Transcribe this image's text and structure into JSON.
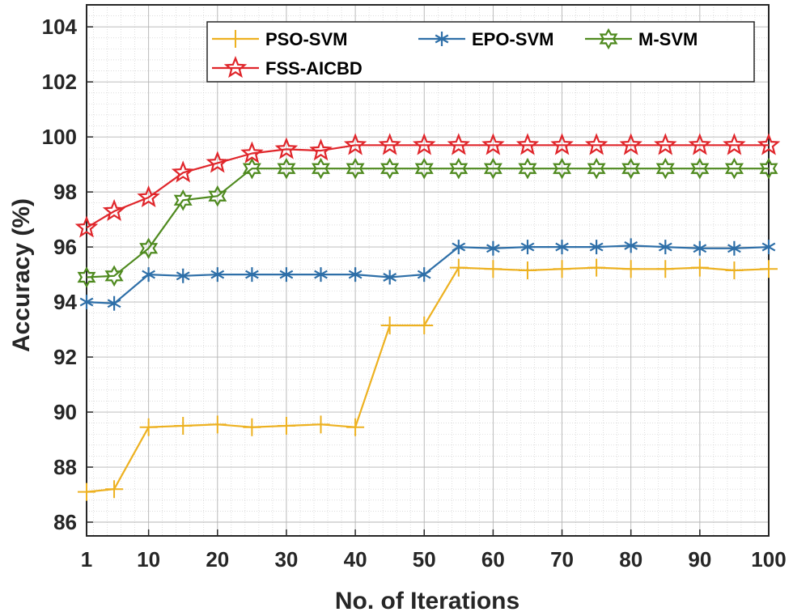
{
  "chart_data": {
    "type": "line",
    "xlabel": "No. of Iterations",
    "ylabel": "Accuracy (%)",
    "xlim": [
      1,
      100
    ],
    "ylim": [
      85.5,
      104.8
    ],
    "xticks": [
      1,
      10,
      20,
      30,
      40,
      50,
      60,
      70,
      80,
      90,
      100
    ],
    "yticks": [
      86,
      88,
      90,
      92,
      94,
      96,
      98,
      100,
      102,
      104
    ],
    "grid": true,
    "legend_position": "top-right",
    "x": [
      1,
      5,
      10,
      15,
      20,
      25,
      30,
      35,
      40,
      45,
      50,
      55,
      60,
      65,
      70,
      75,
      80,
      85,
      90,
      95,
      100
    ],
    "series": [
      {
        "name": "PSO-SVM",
        "color": "#EDB120",
        "marker": "plus",
        "values": [
          87.1,
          87.2,
          89.45,
          89.5,
          89.55,
          89.45,
          89.5,
          89.55,
          89.45,
          93.15,
          93.15,
          95.25,
          95.2,
          95.15,
          95.2,
          95.25,
          95.2,
          95.2,
          95.25,
          95.15,
          95.2
        ]
      },
      {
        "name": "EPO-SVM",
        "color": "#2E6FA8",
        "marker": "asterisk",
        "values": [
          94.0,
          93.95,
          95.0,
          94.95,
          95.0,
          95.0,
          95.0,
          95.0,
          95.0,
          94.9,
          95.0,
          96.0,
          95.95,
          96.0,
          96.0,
          96.0,
          96.05,
          96.0,
          95.95,
          95.95,
          96.0
        ]
      },
      {
        "name": "M-SVM",
        "color": "#4F8A1F",
        "marker": "hexagram",
        "values": [
          94.9,
          94.95,
          95.95,
          97.7,
          97.85,
          98.85,
          98.85,
          98.85,
          98.85,
          98.85,
          98.85,
          98.85,
          98.85,
          98.85,
          98.85,
          98.85,
          98.85,
          98.85,
          98.85,
          98.85,
          98.85
        ]
      },
      {
        "name": "FSS-AICBD",
        "color": "#E0262B",
        "marker": "pentagram",
        "values": [
          96.7,
          97.3,
          97.8,
          98.7,
          99.05,
          99.4,
          99.55,
          99.5,
          99.7,
          99.7,
          99.7,
          99.7,
          99.7,
          99.7,
          99.7,
          99.7,
          99.7,
          99.7,
          99.7,
          99.7,
          99.7
        ]
      }
    ]
  }
}
